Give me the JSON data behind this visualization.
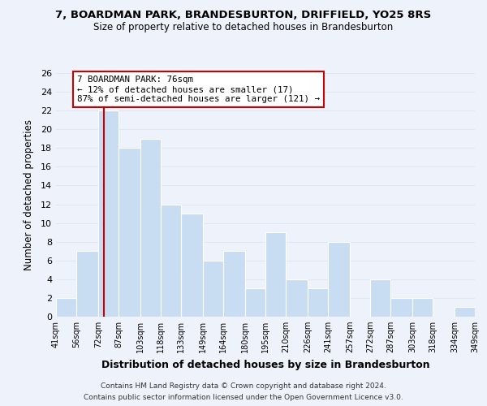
{
  "title": "7, BOARDMAN PARK, BRANDESBURTON, DRIFFIELD, YO25 8RS",
  "subtitle": "Size of property relative to detached houses in Brandesburton",
  "xlabel": "Distribution of detached houses by size in Brandesburton",
  "ylabel": "Number of detached properties",
  "bar_edges": [
    41,
    56,
    72,
    87,
    103,
    118,
    133,
    149,
    164,
    180,
    195,
    210,
    226,
    241,
    257,
    272,
    287,
    303,
    318,
    334,
    349
  ],
  "bar_heights": [
    2,
    7,
    22,
    18,
    19,
    12,
    11,
    6,
    7,
    3,
    9,
    4,
    3,
    8,
    0,
    4,
    2,
    2,
    0,
    1
  ],
  "bar_color": "#c9ddf2",
  "bar_edge_color": "#ffffff",
  "reference_line_x": 76,
  "annotation_title": "7 BOARDMAN PARK: 76sqm",
  "annotation_line1": "← 12% of detached houses are smaller (17)",
  "annotation_line2": "87% of semi-detached houses are larger (121) →",
  "annotation_box_color": "#ffffff",
  "annotation_box_edge": "#cc0000",
  "reference_line_color": "#cc0000",
  "ylim": [
    0,
    26
  ],
  "yticks": [
    0,
    2,
    4,
    6,
    8,
    10,
    12,
    14,
    16,
    18,
    20,
    22,
    24,
    26
  ],
  "tick_labels": [
    "41sqm",
    "56sqm",
    "72sqm",
    "87sqm",
    "103sqm",
    "118sqm",
    "133sqm",
    "149sqm",
    "164sqm",
    "180sqm",
    "195sqm",
    "210sqm",
    "226sqm",
    "241sqm",
    "257sqm",
    "272sqm",
    "287sqm",
    "303sqm",
    "318sqm",
    "334sqm",
    "349sqm"
  ],
  "footer1": "Contains HM Land Registry data © Crown copyright and database right 2024.",
  "footer2": "Contains public sector information licensed under the Open Government Licence v3.0.",
  "grid_color": "#dce8f5",
  "background_color": "#eef3fb"
}
